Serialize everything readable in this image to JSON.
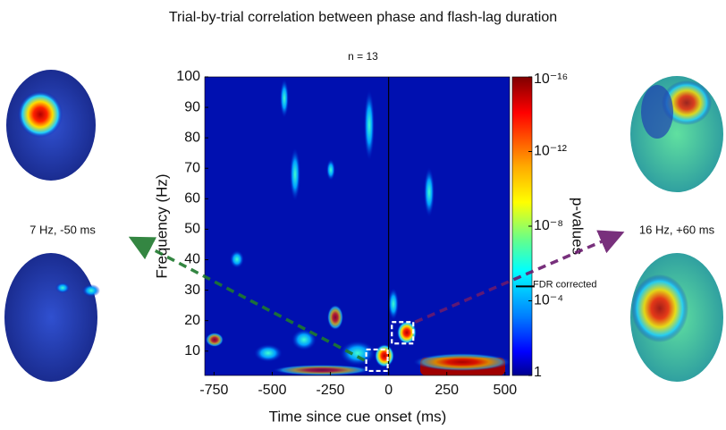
{
  "chart_data": {
    "type": "heatmap",
    "title": "Trial-by-trial correlation between phase and flash-lag duration",
    "subtitle": "n = 13",
    "x_label": "Time since cue onset (ms)",
    "y_label": "Frequency (Hz)",
    "xlim": [
      -790,
      520
    ],
    "ylim": [
      2,
      100
    ],
    "xticks": [
      -750,
      -500,
      -250,
      0,
      250,
      500
    ],
    "yticks": [
      10,
      20,
      30,
      40,
      50,
      60,
      70,
      80,
      90,
      100
    ],
    "colorbar": {
      "label": "p-values",
      "log_scale": true,
      "lim": [
        1e-16,
        1
      ],
      "ticks": [
        {
          "value": 1e-16,
          "label": "10⁻¹⁶"
        },
        {
          "value": 1e-12,
          "label": "10⁻¹²"
        },
        {
          "value": 1e-08,
          "label": "10⁻⁸"
        },
        {
          "value": 0.0001,
          "label": "10⁻⁴"
        },
        1
      ],
      "threshold": {
        "value": 1.7e-05,
        "label": "FDR corrected"
      }
    },
    "highlights": [
      {
        "x": -50,
        "y": 7,
        "label": "7 Hz, -50 ms",
        "color": "#1f7a2e"
      },
      {
        "x": 60,
        "y": 16,
        "label": "16 Hz, +60 ms",
        "color": "#6a1a6e"
      }
    ]
  }
}
